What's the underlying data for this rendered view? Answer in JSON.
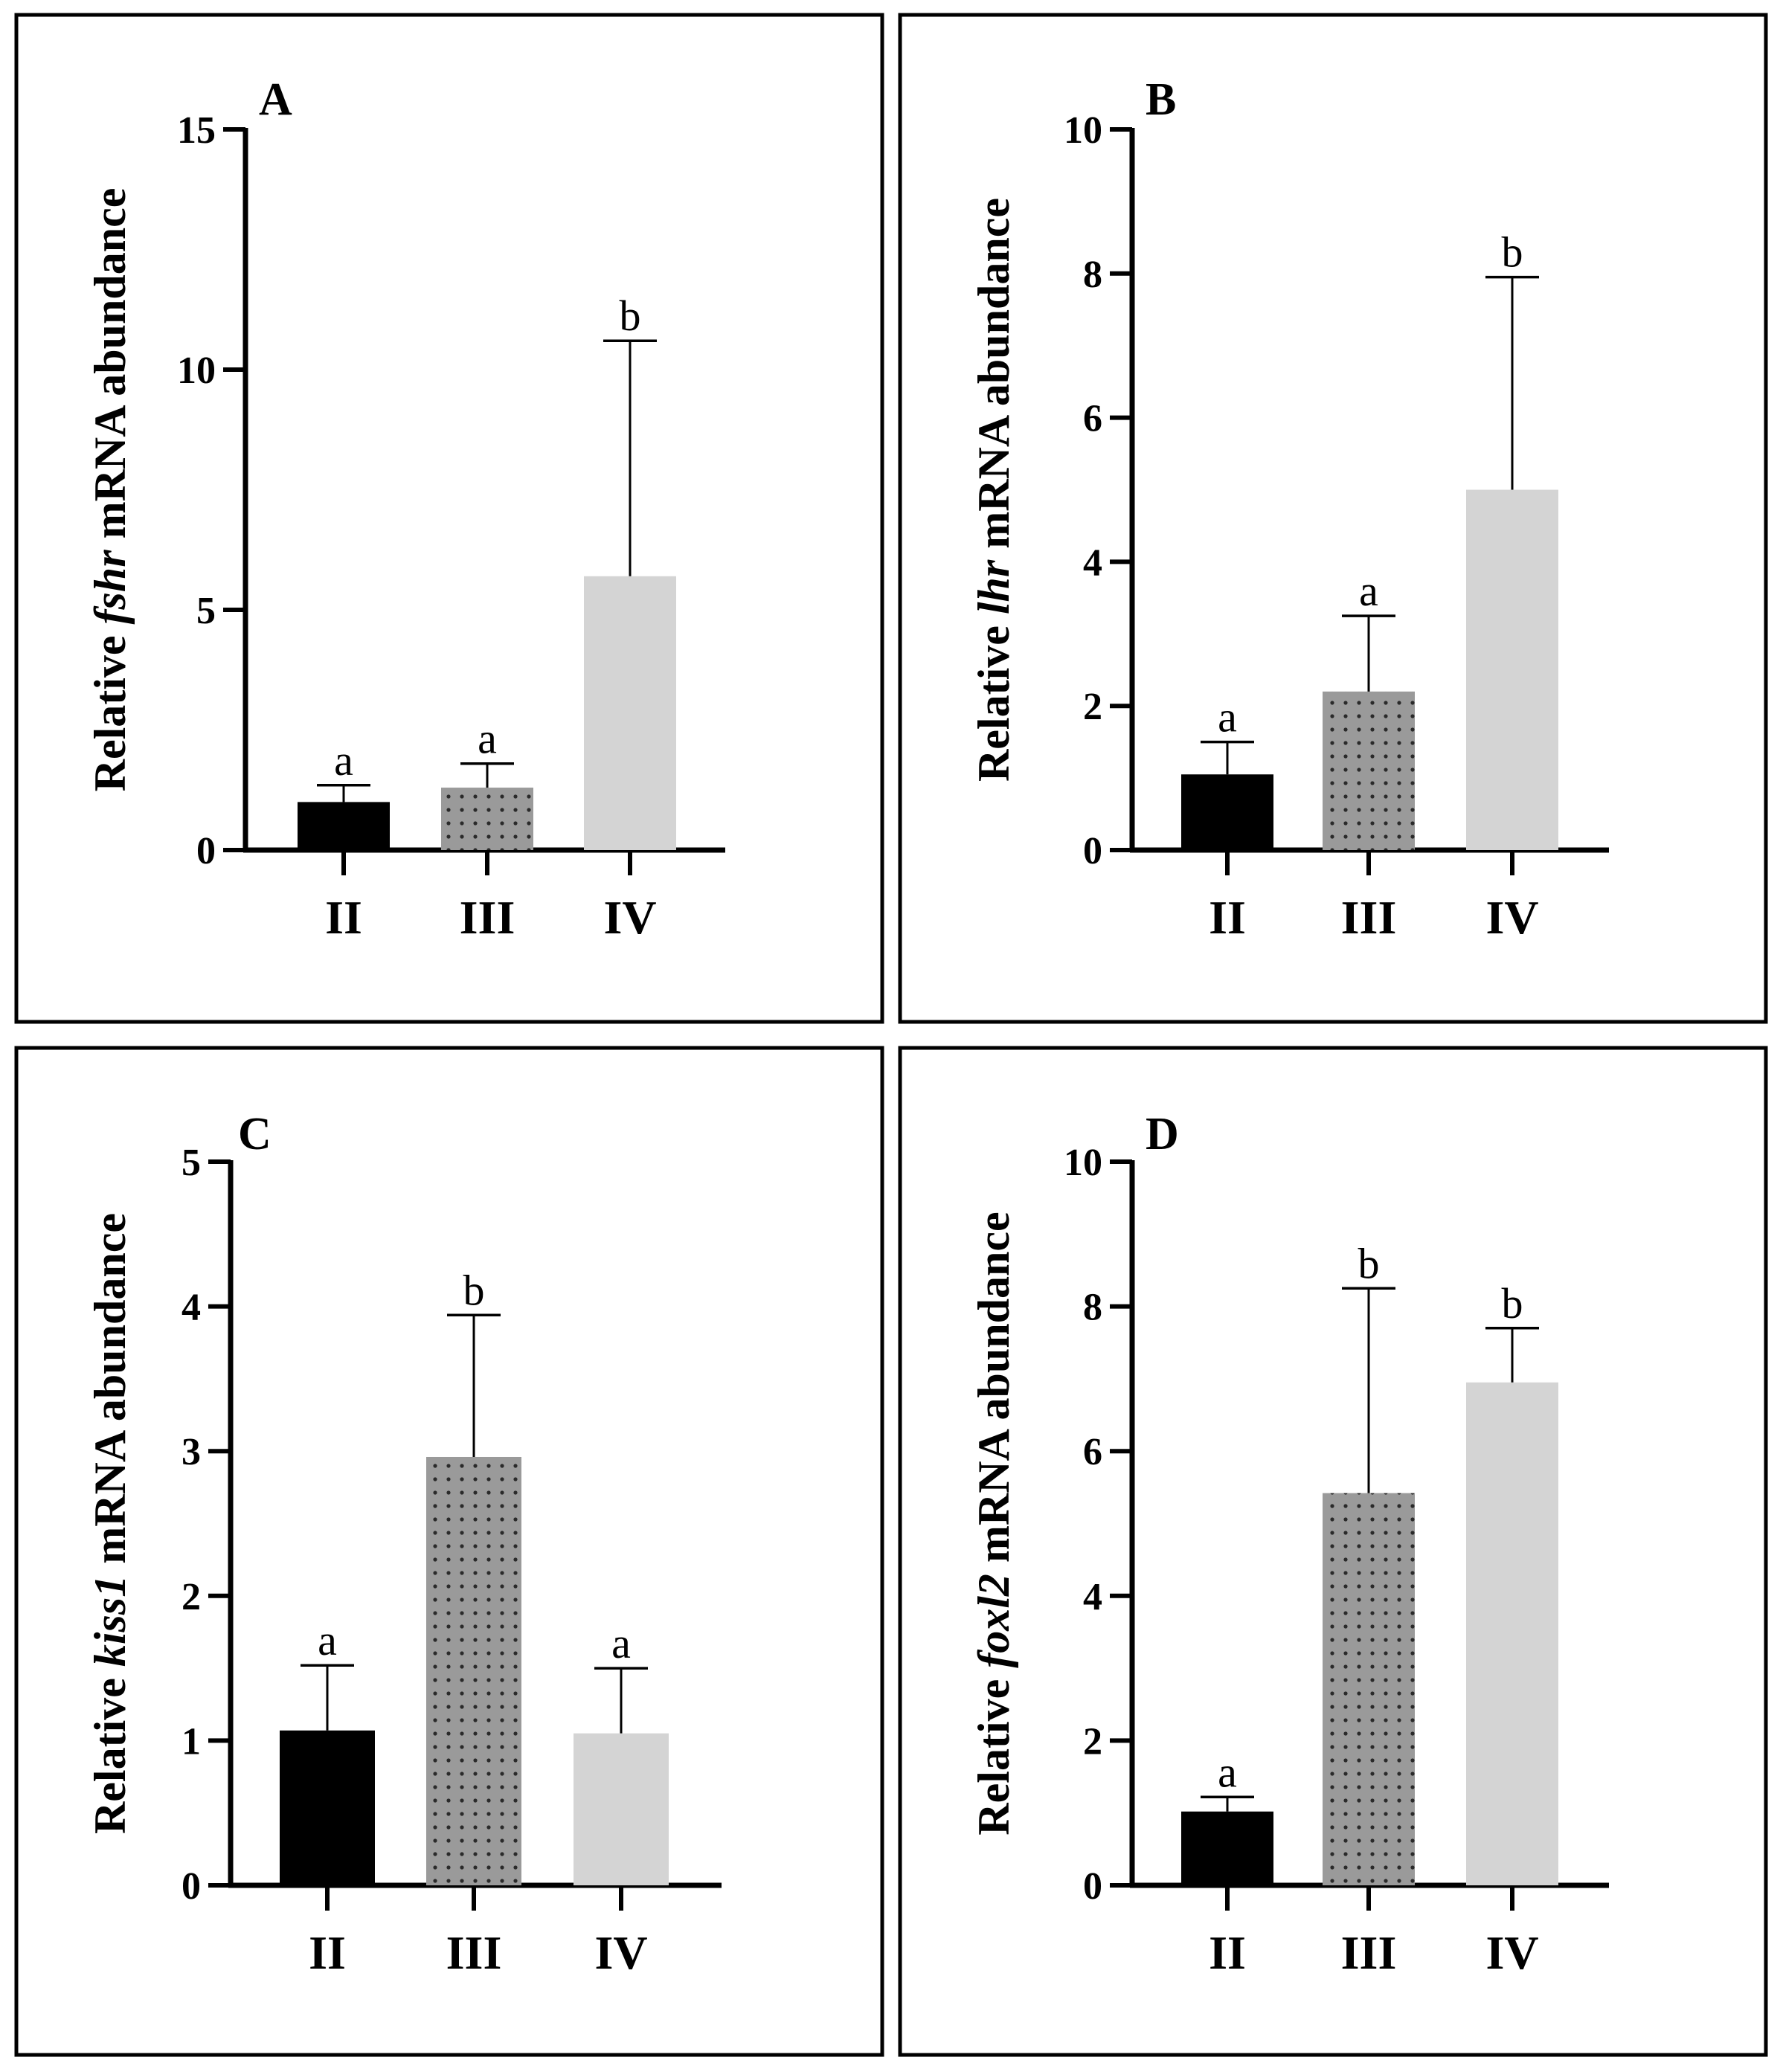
{
  "colors": {
    "background": "#ffffff",
    "ink": "#000000",
    "stage_II_fill": "#000000",
    "stage_III_fill": "#9a9a9a",
    "stage_III_dot": "#2a2a2a",
    "stage_IV_fill": "#d4d4d4"
  },
  "chart_data": [
    {
      "type": "bar",
      "panel": "A",
      "ylabel": {
        "prefix": "Relative ",
        "gene": "fshr",
        "suffix": " mRNA abundance"
      },
      "categories": [
        "II",
        "III",
        "IV"
      ],
      "values": [
        1.0,
        1.3,
        5.7
      ],
      "error_upper": [
        1.35,
        1.8,
        10.6
      ],
      "significance": [
        "a",
        "a",
        "b"
      ],
      "ylim": [
        0,
        15
      ],
      "yticks": [
        0,
        5,
        10,
        15
      ],
      "ytick_labels": [
        "0",
        "5",
        "10",
        "15"
      ]
    },
    {
      "type": "bar",
      "panel": "B",
      "ylabel": {
        "prefix": "Relative ",
        "gene": "lhr",
        "suffix": " mRNA abundance"
      },
      "categories": [
        "II",
        "III",
        "IV"
      ],
      "values": [
        1.05,
        2.2,
        5.0
      ],
      "error_upper": [
        1.5,
        3.25,
        7.95
      ],
      "significance": [
        "a",
        "a",
        "b"
      ],
      "ylim": [
        0,
        10
      ],
      "yticks": [
        0,
        2,
        4,
        6,
        8,
        10
      ],
      "ytick_labels": [
        "0",
        "2",
        "4",
        "6",
        "8",
        "10"
      ]
    },
    {
      "type": "bar",
      "panel": "C",
      "ylabel": {
        "prefix": "Relative ",
        "gene": "kiss1",
        "suffix": " mRNA abundance"
      },
      "categories": [
        "II",
        "III",
        "IV"
      ],
      "values": [
        1.07,
        2.96,
        1.05
      ],
      "error_upper": [
        1.52,
        3.94,
        1.5
      ],
      "significance": [
        "a",
        "b",
        "a"
      ],
      "ylim": [
        0,
        5
      ],
      "yticks": [
        0,
        1,
        2,
        3,
        4,
        5
      ],
      "ytick_labels": [
        "0",
        "1",
        "2",
        "3",
        "4",
        "5"
      ]
    },
    {
      "type": "bar",
      "panel": "D",
      "ylabel": {
        "prefix": "Relative ",
        "gene": "foxl2",
        "suffix": " mRNA abundance"
      },
      "categories": [
        "II",
        "III",
        "IV"
      ],
      "values": [
        1.02,
        5.42,
        6.95
      ],
      "error_upper": [
        1.22,
        8.25,
        7.7
      ],
      "significance": [
        "a",
        "b",
        "b"
      ],
      "ylim": [
        0,
        10
      ],
      "yticks": [
        0,
        2,
        4,
        6,
        8,
        10
      ],
      "ytick_labels": [
        "0",
        "2",
        "4",
        "6",
        "8",
        "10"
      ]
    }
  ]
}
